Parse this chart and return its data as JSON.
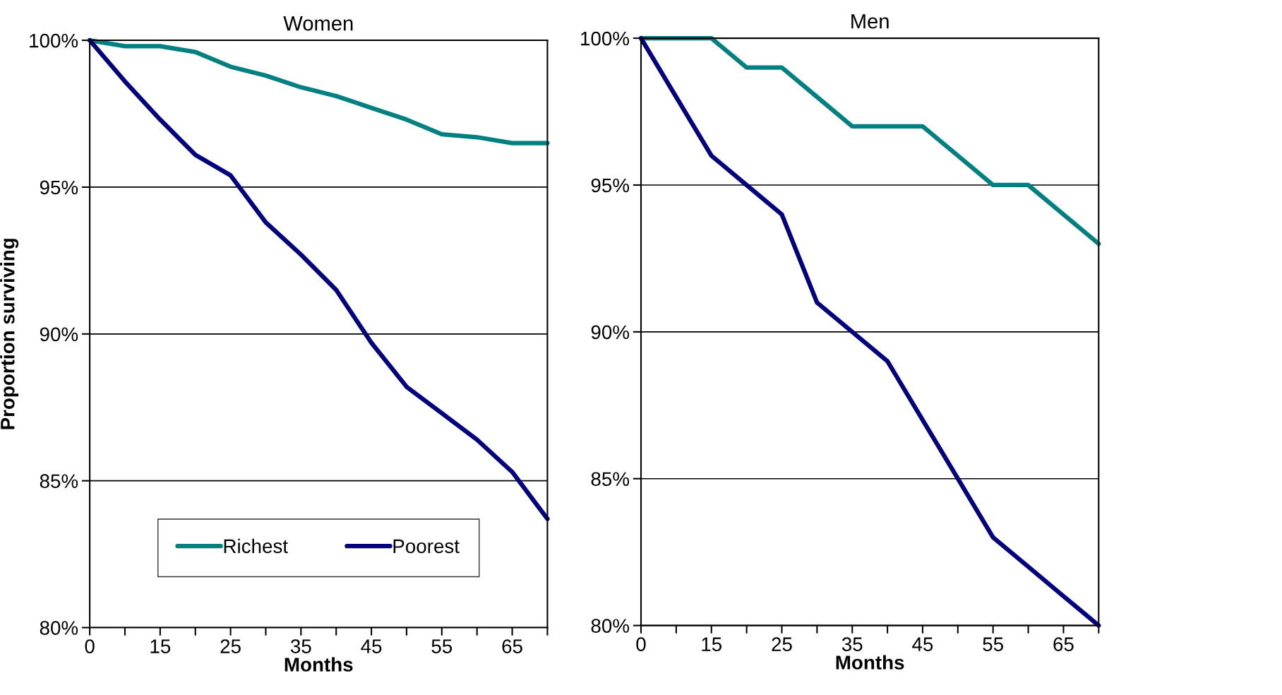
{
  "chart_data": [
    {
      "type": "line",
      "title": "Women",
      "xlabel": "Months",
      "ylabel": "Proportion surviving",
      "categories": [
        "0",
        null,
        "15",
        null,
        "25",
        null,
        "35",
        null,
        "45",
        null,
        "55",
        null,
        "65",
        null
      ],
      "series": [
        {
          "name": "Richest",
          "color": "#008080",
          "values": [
            100,
            99.8,
            99.8,
            99.6,
            99.1,
            98.8,
            98.4,
            98.1,
            97.7,
            97.3,
            96.8,
            96.7,
            96.5,
            96.5
          ]
        },
        {
          "name": "Poorest",
          "color": "#000080",
          "values": [
            100,
            98.6,
            97.3,
            96.1,
            95.4,
            93.8,
            92.7,
            91.5,
            89.7,
            88.2,
            87.3,
            86.4,
            85.3,
            83.7
          ]
        }
      ],
      "ylim": [
        80,
        100
      ],
      "yticks": [
        {
          "value": 80,
          "label": "80%"
        },
        {
          "value": 85,
          "label": "85%"
        },
        {
          "value": 90,
          "label": "90%"
        },
        {
          "value": 95,
          "label": "95%"
        },
        {
          "value": 100,
          "label": "100%"
        }
      ],
      "grid": "y",
      "legend": "bottom",
      "marker": "none",
      "line_style": "solid"
    },
    {
      "type": "line",
      "title": "Men",
      "xlabel": "Months",
      "categories": [
        "0",
        null,
        "15",
        null,
        "25",
        null,
        "35",
        null,
        "45",
        null,
        "55",
        null,
        "65",
        null
      ],
      "series": [
        {
          "color": "#008080",
          "values": [
            100,
            100,
            100,
            99,
            99,
            98,
            97,
            97,
            97,
            96,
            95,
            95,
            94,
            93
          ]
        },
        {
          "color": "#000080",
          "values": [
            100,
            98,
            96,
            95,
            94,
            91,
            90,
            89,
            87,
            85,
            83,
            82,
            81,
            80
          ]
        }
      ],
      "ylim": [
        80,
        100
      ],
      "yticks": [
        {
          "value": 80,
          "label": "80%"
        },
        {
          "value": 85,
          "label": "85%"
        },
        {
          "value": 90,
          "label": "90%"
        },
        {
          "value": 95,
          "label": "95%"
        },
        {
          "value": 100,
          "label": "100%"
        }
      ],
      "grid": "y",
      "marker": "none",
      "line_style": "solid"
    }
  ]
}
